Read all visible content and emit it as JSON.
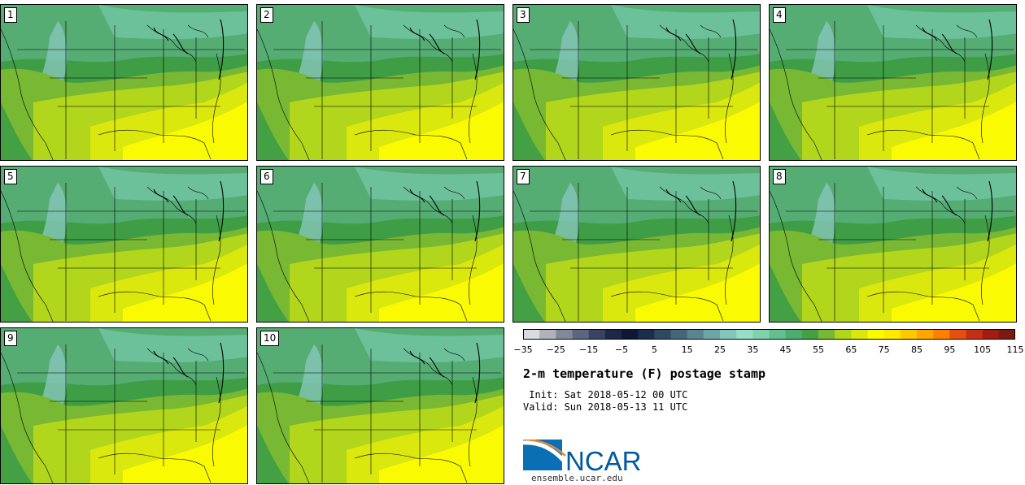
{
  "panels": [
    {
      "label": "1"
    },
    {
      "label": "2"
    },
    {
      "label": "3"
    },
    {
      "label": "4"
    },
    {
      "label": "5"
    },
    {
      "label": "6"
    },
    {
      "label": "7"
    },
    {
      "label": "8"
    },
    {
      "label": "9"
    },
    {
      "label": "10"
    }
  ],
  "colorbar": {
    "colors": [
      "#d9dcdf",
      "#aeb2ba",
      "#818898",
      "#5d6681",
      "#3a4362",
      "#1d2746",
      "#0e1834",
      "#1b2d4a",
      "#2f4963",
      "#436679",
      "#598590",
      "#6ea6a5",
      "#86c6ba",
      "#95dfc7",
      "#7ed2ae",
      "#63c08e",
      "#4cae6e",
      "#43a043",
      "#78b833",
      "#b1d61b",
      "#dbe80d",
      "#fafa02",
      "#ffea00",
      "#ffc900",
      "#ffa600",
      "#ff7f00",
      "#e5500e",
      "#c33014",
      "#a31c12",
      "#7a1a10"
    ],
    "tick_labels": [
      "−35",
      "−25",
      "−15",
      "−5",
      "5",
      "15",
      "25",
      "35",
      "45",
      "55",
      "65",
      "75",
      "85",
      "95",
      "105",
      "115"
    ]
  },
  "title": "2-m temperature (F) postage stamp",
  "init": " Init: Sat 2018-05-12 00 UTC",
  "valid": "Valid: Sun 2018-05-13 11 UTC",
  "logo": {
    "text": "NCAR",
    "brand_color": "#005aa0"
  },
  "url": "ensemble.ucar.edu"
}
